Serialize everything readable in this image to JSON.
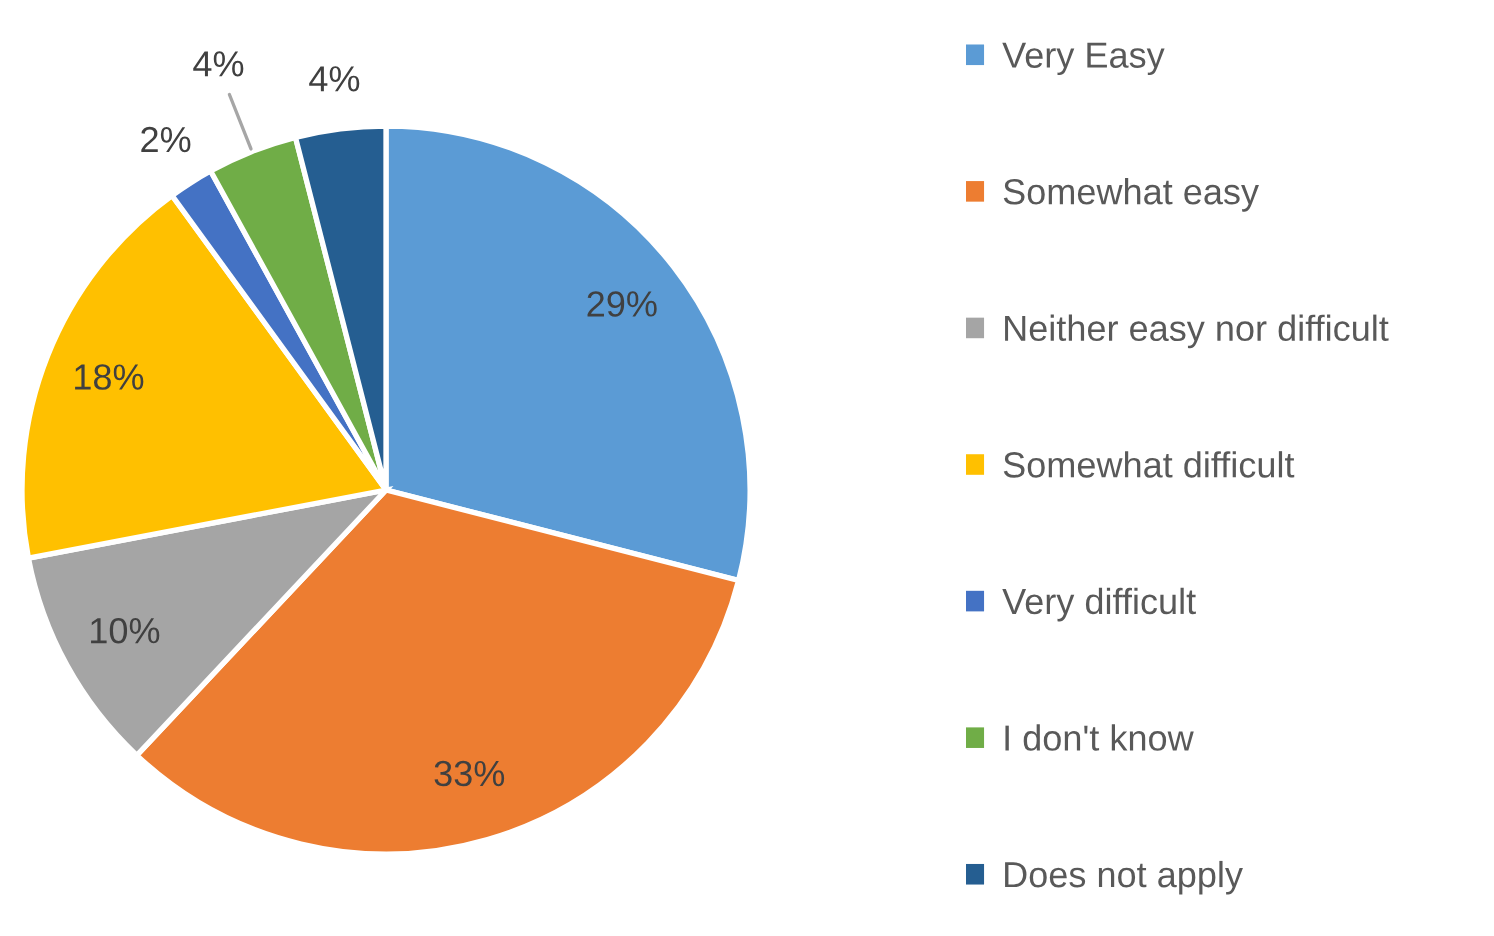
{
  "chart_data": {
    "type": "pie",
    "categories": [
      "Very Easy",
      "Somewhat easy",
      "Neither easy nor difficult",
      "Somewhat difficult",
      "Very difficult",
      "I don't know",
      "Does not apply"
    ],
    "values": [
      29,
      33,
      10,
      18,
      2,
      4,
      4
    ],
    "colors": [
      "#5b9bd5",
      "#ed7d31",
      "#a5a5a5",
      "#ffc000",
      "#4472c4",
      "#70ad47",
      "#255e91"
    ],
    "value_labels": [
      "29%",
      "33%",
      "10%",
      "18%",
      "2%",
      "4%",
      "4%"
    ],
    "legend": "right"
  }
}
